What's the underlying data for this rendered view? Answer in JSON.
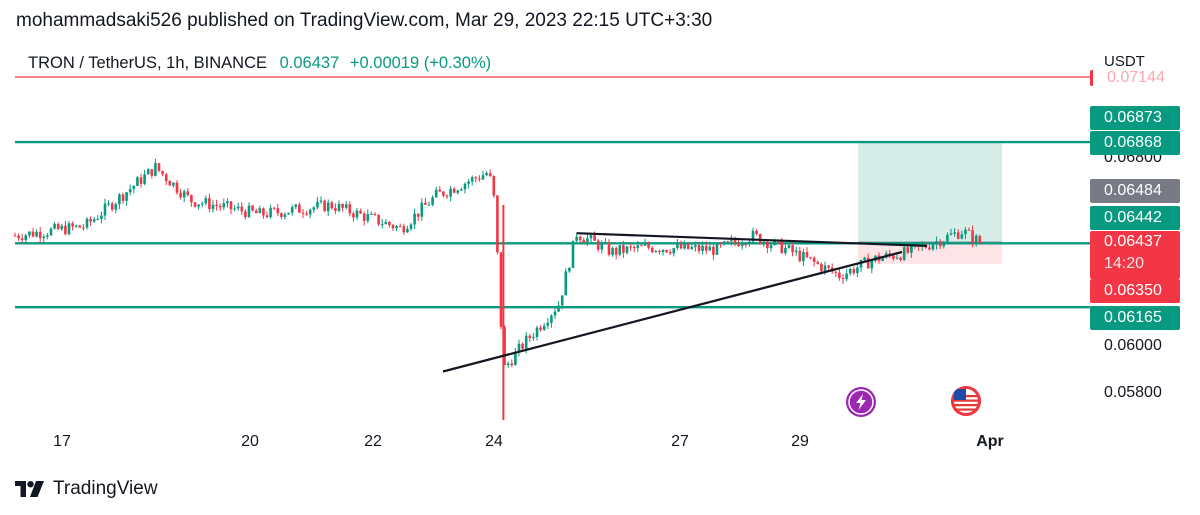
{
  "header": {
    "published": "mohammadsaki526 published on TradingView.com, Mar 29, 2023 22:15 UTC+3:30",
    "symbol": "TRON / TetherUS, 1h, BINANCE",
    "last_price": "0.06437",
    "change": "+0.00019 (+0.30%)"
  },
  "footer": {
    "brand": "TradingView"
  },
  "price_axis": {
    "currency": "USDT",
    "tick_labels": [
      "0.06800",
      "0.06000",
      "0.05800"
    ],
    "tags": [
      {
        "text": "0.07144",
        "color": "#f23645",
        "style": "line"
      },
      {
        "text": "0.06873",
        "color": "#089981"
      },
      {
        "text": "0.06868",
        "color": "#089981"
      },
      {
        "text": "0.06484",
        "color": "#787b86"
      },
      {
        "text": "0.06442",
        "color": "#089981"
      },
      {
        "text": "0.06437",
        "sub": "14:20",
        "color": "#f23645"
      },
      {
        "text": "0.06350",
        "color": "#f23645"
      },
      {
        "text": "0.06165",
        "color": "#089981"
      }
    ]
  },
  "time_axis": {
    "labels": [
      "17",
      "20",
      "22",
      "24",
      "27",
      "29",
      "Apr"
    ]
  },
  "colors": {
    "up": "#089981",
    "down": "#f23645",
    "level_line": "#089981",
    "trend_line": "#131722",
    "target_zone": "#d7eee8",
    "stop_zone": "#fde4e7"
  },
  "icons": [
    "lightning-event-icon",
    "us-flag-event-icon"
  ],
  "chart_data": {
    "type": "candlestick",
    "symbol": "TRXUSDT",
    "interval": "1h",
    "x_range": [
      "2023-03-16",
      "2023-04-01"
    ],
    "y_range": [
      0.0575,
      0.0715
    ],
    "horizontal_levels": [
      0.06868,
      0.06437,
      0.06165
    ],
    "red_line_level": 0.07144,
    "triangle": {
      "upper": [
        {
          "x": "2023-03-24T00:00",
          "y": 0.0648
        },
        {
          "x": "2023-03-31T06:00",
          "y": 0.0646
        }
      ],
      "lower": [
        {
          "x": "2023-03-23T06:00",
          "y": 0.059
        },
        {
          "x": "2023-03-31T00:00",
          "y": 0.06415
        }
      ]
    },
    "position": {
      "entry": 0.06442,
      "target": 0.06868,
      "stop": 0.0635
    },
    "series_points": [
      {
        "x": "2023-03-16T00:00",
        "y": 0.0647
      },
      {
        "x": "2023-03-17T00:00",
        "y": 0.0651
      },
      {
        "x": "2023-03-18T00:00",
        "y": 0.0676
      },
      {
        "x": "2023-03-18T12:00",
        "y": 0.0662
      },
      {
        "x": "2023-03-19T12:00",
        "y": 0.0656
      },
      {
        "x": "2023-03-20T12:00",
        "y": 0.066
      },
      {
        "x": "2023-03-21T12:00",
        "y": 0.065
      },
      {
        "x": "2023-03-22T00:00",
        "y": 0.0664
      },
      {
        "x": "2023-03-22T18:00",
        "y": 0.0674
      },
      {
        "x": "2023-03-22T20:00",
        "y": 0.0661
      },
      {
        "x": "2023-03-22T23:00",
        "y": 0.059
      },
      {
        "x": "2023-03-23T06:00",
        "y": 0.0601
      },
      {
        "x": "2023-03-23T18:00",
        "y": 0.0618
      },
      {
        "x": "2023-03-24T00:00",
        "y": 0.0648
      },
      {
        "x": "2023-03-24T12:00",
        "y": 0.064
      },
      {
        "x": "2023-03-25T00:00",
        "y": 0.0642
      },
      {
        "x": "2023-03-26T00:00",
        "y": 0.0641
      },
      {
        "x": "2023-03-26T12:00",
        "y": 0.0647
      },
      {
        "x": "2023-03-27T00:00",
        "y": 0.0641
      },
      {
        "x": "2023-03-27T18:00",
        "y": 0.063
      },
      {
        "x": "2023-03-28T06:00",
        "y": 0.0637
      },
      {
        "x": "2023-03-28T18:00",
        "y": 0.064
      },
      {
        "x": "2023-03-29T06:00",
        "y": 0.0646
      },
      {
        "x": "2023-03-29T12:00",
        "y": 0.0649
      },
      {
        "x": "2023-03-29T18:00",
        "y": 0.0644
      }
    ]
  }
}
